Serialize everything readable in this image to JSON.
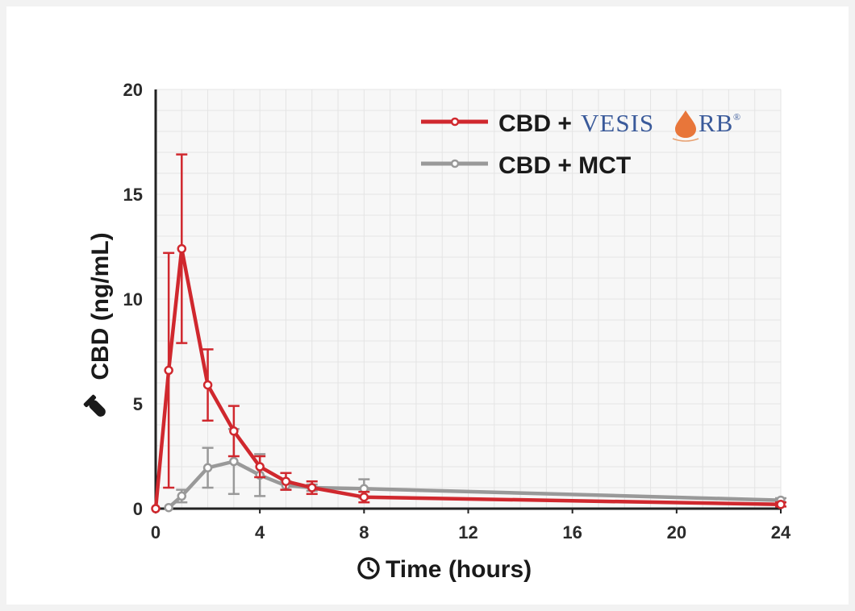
{
  "chart_data": {
    "type": "line",
    "xlabel": "Time (hours)",
    "ylabel": "CBD (ng/mL)",
    "xlim": [
      0,
      24
    ],
    "ylim": [
      0,
      20
    ],
    "x_ticks": [
      "0",
      "4",
      "8",
      "12",
      "16",
      "20",
      "24"
    ],
    "y_ticks": [
      "0",
      "5",
      "10",
      "15",
      "20"
    ],
    "grid": true,
    "legend_position": "top-right",
    "error_bars": true,
    "series": [
      {
        "name": "CBD + VESISORB",
        "legend_prefix": "CBD + ",
        "legend_brand": "VESIS",
        "legend_brand_end": "RB",
        "legend_brand_mark": "®",
        "color": "#d0282e",
        "points": [
          {
            "x": 0,
            "y": 0
          },
          {
            "x": 0.5,
            "y": 6.6,
            "err": 5.6
          },
          {
            "x": 1,
            "y": 12.4,
            "err": 4.5
          },
          {
            "x": 2,
            "y": 5.9,
            "err": 1.7
          },
          {
            "x": 3,
            "y": 3.7,
            "err": 1.2
          },
          {
            "x": 4,
            "y": 2.0,
            "err": 0.5
          },
          {
            "x": 5,
            "y": 1.3,
            "err": 0.4
          },
          {
            "x": 6,
            "y": 1.0,
            "err": 0.3
          },
          {
            "x": 8,
            "y": 0.55,
            "err": 0.25
          },
          {
            "x": 24,
            "y": 0.2,
            "err": 0.1
          }
        ]
      },
      {
        "name": "CBD + MCT",
        "color": "#999999",
        "points": [
          {
            "x": 0.5,
            "y": 0.05
          },
          {
            "x": 1,
            "y": 0.6,
            "err": 0.3
          },
          {
            "x": 2,
            "y": 1.95,
            "err": 0.95
          },
          {
            "x": 3,
            "y": 2.25,
            "err": 1.55
          },
          {
            "x": 4,
            "y": 1.6,
            "err": 1.0
          },
          {
            "x": 5,
            "y": 1.1,
            "err": 0.2
          },
          {
            "x": 6,
            "y": 1.0,
            "err": 0.15
          },
          {
            "x": 8,
            "y": 0.95,
            "err": 0.45
          },
          {
            "x": 24,
            "y": 0.4,
            "err": 0.1
          }
        ]
      }
    ]
  },
  "icons": {
    "y_axis_icon": "test-tube-icon",
    "x_axis_icon": "clock-icon",
    "brand_logo": "vesisorb-droplet-logo"
  },
  "colors": {
    "brand_blue": "#3a5a9a",
    "brand_orange": "#e8763a",
    "grid": "#e4e4e4",
    "axis": "#222222"
  }
}
